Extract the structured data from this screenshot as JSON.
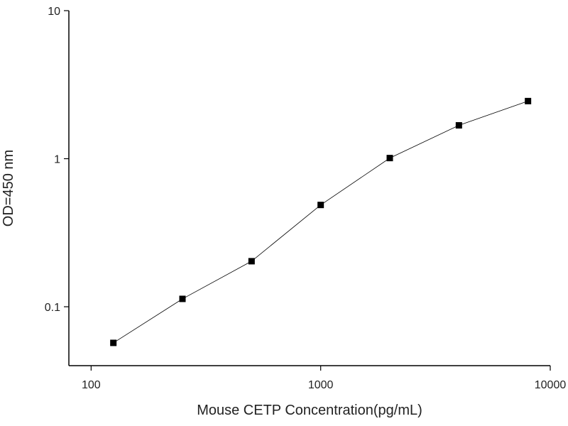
{
  "chart_data": {
    "type": "line",
    "x_label": "Mouse CETP Concentration(pg/mL)",
    "y_label": "OD=450 nm",
    "x": [
      125,
      250,
      500,
      1000,
      2000,
      4000,
      8000
    ],
    "values": [
      0.057,
      0.113,
      0.203,
      0.487,
      1.01,
      1.68,
      2.45
    ],
    "color": "#000000",
    "xlim": [
      80,
      10000
    ],
    "ylim": [
      0.04,
      10
    ],
    "xticks": [
      100,
      1000,
      10000
    ],
    "yticks": [
      0.1,
      1,
      10
    ],
    "xscale": "log",
    "yscale": "log",
    "grid": false
  }
}
